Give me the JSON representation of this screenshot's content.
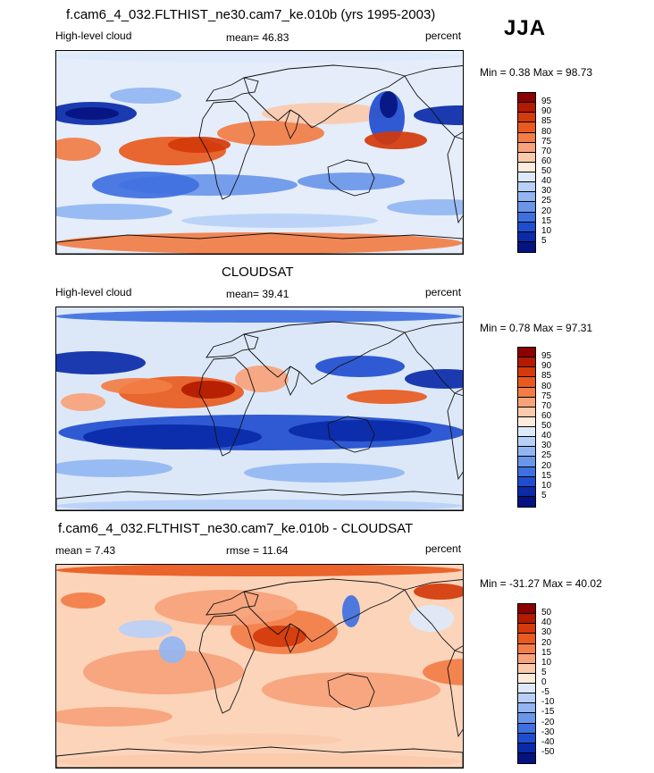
{
  "season": "JJA",
  "panels": [
    {
      "title": "f.cam6_4_032.FLTHIST_ne30.cam7_ke.010b (yrs 1995-2003)",
      "left_label": "High-level cloud",
      "center_label": "mean=  46.83",
      "right_label": "percent",
      "minmax": "Min =   0.38 Max =  98.73",
      "kind": "model",
      "colorbar": {
        "labels": [
          "95",
          "90",
          "85",
          "80",
          "75",
          "70",
          "60",
          "50",
          "40",
          "30",
          "25",
          "20",
          "15",
          "10",
          "5"
        ],
        "colors": [
          "#8b0000",
          "#b31a00",
          "#d43a0a",
          "#e85a1e",
          "#f27d46",
          "#f7a27a",
          "#fbcaac",
          "#fdebdc",
          "#dde9fb",
          "#b8d0f7",
          "#93b6f2",
          "#6a96ea",
          "#3f70df",
          "#1f4dcf",
          "#0a2aa8",
          "#051380"
        ]
      }
    },
    {
      "title": "CLOUDSAT",
      "left_label": "High-level cloud",
      "center_label": "mean=  39.41",
      "right_label": "percent",
      "minmax": "Min =   0.78 Max =  97.31",
      "kind": "obs",
      "colorbar": {
        "labels": [
          "95",
          "90",
          "85",
          "80",
          "75",
          "70",
          "60",
          "50",
          "40",
          "30",
          "25",
          "20",
          "15",
          "10",
          "5"
        ],
        "colors": [
          "#8b0000",
          "#b31a00",
          "#d43a0a",
          "#e85a1e",
          "#f27d46",
          "#f7a27a",
          "#fbcaac",
          "#fdebdc",
          "#dde9fb",
          "#b8d0f7",
          "#93b6f2",
          "#6a96ea",
          "#3f70df",
          "#1f4dcf",
          "#0a2aa8",
          "#051380"
        ]
      }
    },
    {
      "title": "f.cam6_4_032.FLTHIST_ne30.cam7_ke.010b - CLOUDSAT",
      "left_label": "mean =   7.43",
      "center_label": "rmse =  11.64",
      "right_label": "percent",
      "minmax": "Min = -31.27 Max =  40.02",
      "kind": "diff",
      "colorbar": {
        "labels": [
          "50",
          "40",
          "30",
          "20",
          "15",
          "10",
          "5",
          "0",
          "-5",
          "-10",
          "-15",
          "-20",
          "-30",
          "-40",
          "-50"
        ],
        "colors": [
          "#8b0000",
          "#b31a00",
          "#d43a0a",
          "#e85a1e",
          "#f27d46",
          "#f7a27a",
          "#fbcaac",
          "#fdebdc",
          "#dde9fb",
          "#b8d0f7",
          "#93b6f2",
          "#6a96ea",
          "#3f70df",
          "#1f4dcf",
          "#0a2aa8",
          "#051380"
        ]
      }
    }
  ]
}
